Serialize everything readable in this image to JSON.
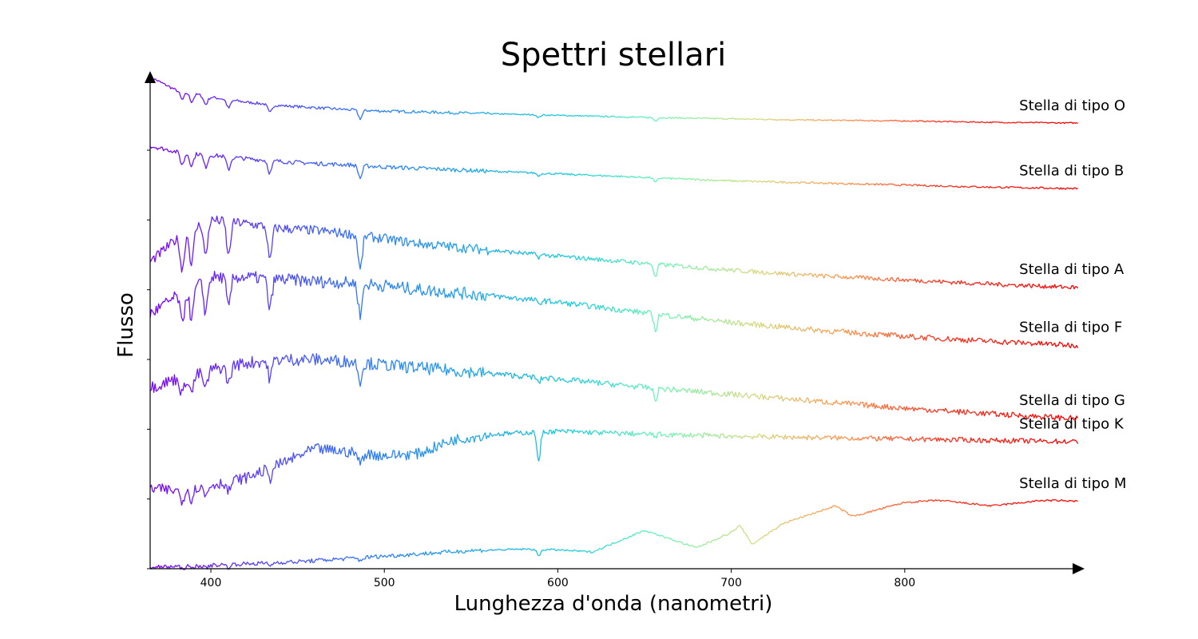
{
  "chart_data": {
    "type": "line",
    "title": "Spettri stellari",
    "xlabel": "Lunghezza d'onda (nanometri)",
    "ylabel": "Flusso",
    "xlim": [
      365,
      900
    ],
    "ylim": [
      0,
      7.1
    ],
    "x_ticks": [
      400,
      500,
      600,
      700,
      800
    ],
    "y_tick_marks": [
      0,
      1,
      2,
      3,
      4,
      5,
      6,
      7
    ],
    "y_tick_labels_shown": false,
    "grid": false,
    "legend": "none (labels placed at right end of each series)",
    "colormap": "rainbow by wavelength (violet #8000ff at short λ → red #ff0000 at long λ)",
    "absorption_lines_nm": [
      383.5,
      388.9,
      397.0,
      410.2,
      434.0,
      486.1,
      589.0,
      656.3
    ],
    "series": [
      {
        "name": "Stella di tipo O",
        "x": [
          365,
          380,
          400,
          420,
          440,
          460,
          480,
          500,
          520,
          550,
          600,
          650,
          700,
          750,
          800,
          850,
          900
        ],
        "y": [
          7.05,
          6.86,
          6.76,
          6.69,
          6.64,
          6.61,
          6.58,
          6.56,
          6.55,
          6.53,
          6.5,
          6.47,
          6.45,
          6.43,
          6.42,
          6.4,
          6.39
        ],
        "features": "Balmer and He lines weak; dips at 486 and 656 nm"
      },
      {
        "name": "Stella di tipo B",
        "x": [
          365,
          380,
          400,
          420,
          440,
          460,
          480,
          500,
          520,
          550,
          600,
          650,
          700,
          750,
          800,
          850,
          900
        ],
        "y": [
          6.06,
          5.98,
          5.93,
          5.88,
          5.84,
          5.81,
          5.79,
          5.76,
          5.74,
          5.71,
          5.66,
          5.61,
          5.56,
          5.53,
          5.5,
          5.47,
          5.45
        ],
        "features": "moderate Balmer absorption at 397, 410, 434, 486 nm"
      },
      {
        "name": "Stella di tipo A",
        "x": [
          365,
          380,
          395,
          400,
          420,
          440,
          460,
          480,
          500,
          520,
          550,
          600,
          650,
          700,
          750,
          800,
          850,
          900
        ],
        "y": [
          4.4,
          4.72,
          4.95,
          5.0,
          4.95,
          4.88,
          4.85,
          4.8,
          4.73,
          4.66,
          4.59,
          4.48,
          4.38,
          4.28,
          4.2,
          4.14,
          4.08,
          4.03
        ],
        "features": "very strong Balmer lines; deep dip at 656 nm"
      },
      {
        "name": "Stella di tipo F",
        "x": [
          365,
          380,
          395,
          400,
          420,
          440,
          460,
          480,
          500,
          520,
          550,
          600,
          650,
          700,
          750,
          800,
          850,
          900
        ],
        "y": [
          3.65,
          3.9,
          4.1,
          4.18,
          4.18,
          4.15,
          4.12,
          4.1,
          4.06,
          4.0,
          3.94,
          3.82,
          3.67,
          3.53,
          3.42,
          3.33,
          3.26,
          3.2
        ],
        "features": "strong Balmer lines plus metal lines"
      },
      {
        "name": "Stella di tipo G",
        "x": [
          365,
          380,
          395,
          400,
          420,
          440,
          460,
          480,
          500,
          520,
          550,
          600,
          650,
          700,
          750,
          800,
          850,
          900
        ],
        "y": [
          2.6,
          2.72,
          2.8,
          2.85,
          2.95,
          3.0,
          3.0,
          2.97,
          2.92,
          2.88,
          2.82,
          2.72,
          2.6,
          2.5,
          2.4,
          2.3,
          2.22,
          2.15
        ],
        "features": "Ca II H&K, G-band, Na D at 589 nm, H-alpha"
      },
      {
        "name": "Stella di tipo K",
        "x": [
          365,
          380,
          400,
          420,
          440,
          460,
          480,
          500,
          520,
          540,
          560,
          580,
          600,
          650,
          700,
          750,
          800,
          850,
          900
        ],
        "y": [
          1.15,
          1.12,
          1.2,
          1.3,
          1.5,
          1.72,
          1.67,
          1.62,
          1.65,
          1.85,
          1.92,
          1.95,
          1.97,
          1.93,
          1.9,
          1.88,
          1.86,
          1.84,
          1.82
        ],
        "features": "deep Na D at 589 nm and Ca II; many metal lines"
      },
      {
        "name": "Stella di tipo M",
        "x": [
          365,
          400,
          450,
          500,
          550,
          580,
          600,
          620,
          650,
          680,
          700,
          705,
          712,
          730,
          760,
          770,
          800,
          820,
          850,
          880,
          900
        ],
        "y": [
          0.02,
          0.05,
          0.1,
          0.18,
          0.26,
          0.28,
          0.27,
          0.24,
          0.55,
          0.3,
          0.52,
          0.62,
          0.35,
          0.65,
          0.9,
          0.75,
          0.95,
          0.98,
          0.9,
          0.98,
          0.97
        ],
        "features": "TiO molecular bands; sharp drop at 705 and 765 nm"
      }
    ]
  }
}
